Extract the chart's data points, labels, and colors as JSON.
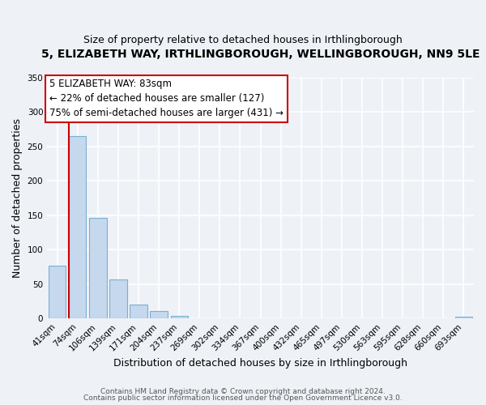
{
  "title": "5, ELIZABETH WAY, IRTHLINGBOROUGH, WELLINGBOROUGH, NN9 5LE",
  "subtitle": "Size of property relative to detached houses in Irthlingborough",
  "xlabel": "Distribution of detached houses by size in Irthlingborough",
  "ylabel": "Number of detached properties",
  "bar_labels": [
    "41sqm",
    "74sqm",
    "106sqm",
    "139sqm",
    "171sqm",
    "204sqm",
    "237sqm",
    "269sqm",
    "302sqm",
    "334sqm",
    "367sqm",
    "400sqm",
    "432sqm",
    "465sqm",
    "497sqm",
    "530sqm",
    "563sqm",
    "595sqm",
    "628sqm",
    "660sqm",
    "693sqm"
  ],
  "bar_values": [
    77,
    265,
    146,
    57,
    20,
    11,
    4,
    0,
    0,
    0,
    0,
    0,
    0,
    0,
    0,
    0,
    0,
    0,
    0,
    0,
    3
  ],
  "bar_color": "#c5d8ed",
  "bar_edgecolor": "#7bafd4",
  "ylim": [
    0,
    350
  ],
  "yticks": [
    0,
    50,
    100,
    150,
    200,
    250,
    300,
    350
  ],
  "vline_color": "#cc0000",
  "annotation_title": "5 ELIZABETH WAY: 83sqm",
  "annotation_line1": "← 22% of detached houses are smaller (127)",
  "annotation_line2": "75% of semi-detached houses are larger (431) →",
  "annotation_box_color": "#cc0000",
  "footer_line1": "Contains HM Land Registry data © Crown copyright and database right 2024.",
  "footer_line2": "Contains public sector information licensed under the Open Government Licence v3.0.",
  "bg_color": "#eef2f7",
  "grid_color": "#ffffff",
  "title_fontsize": 10,
  "subtitle_fontsize": 9,
  "axis_label_fontsize": 9,
  "tick_label_fontsize": 7.5,
  "footer_fontsize": 6.5,
  "annotation_fontsize": 8.5
}
